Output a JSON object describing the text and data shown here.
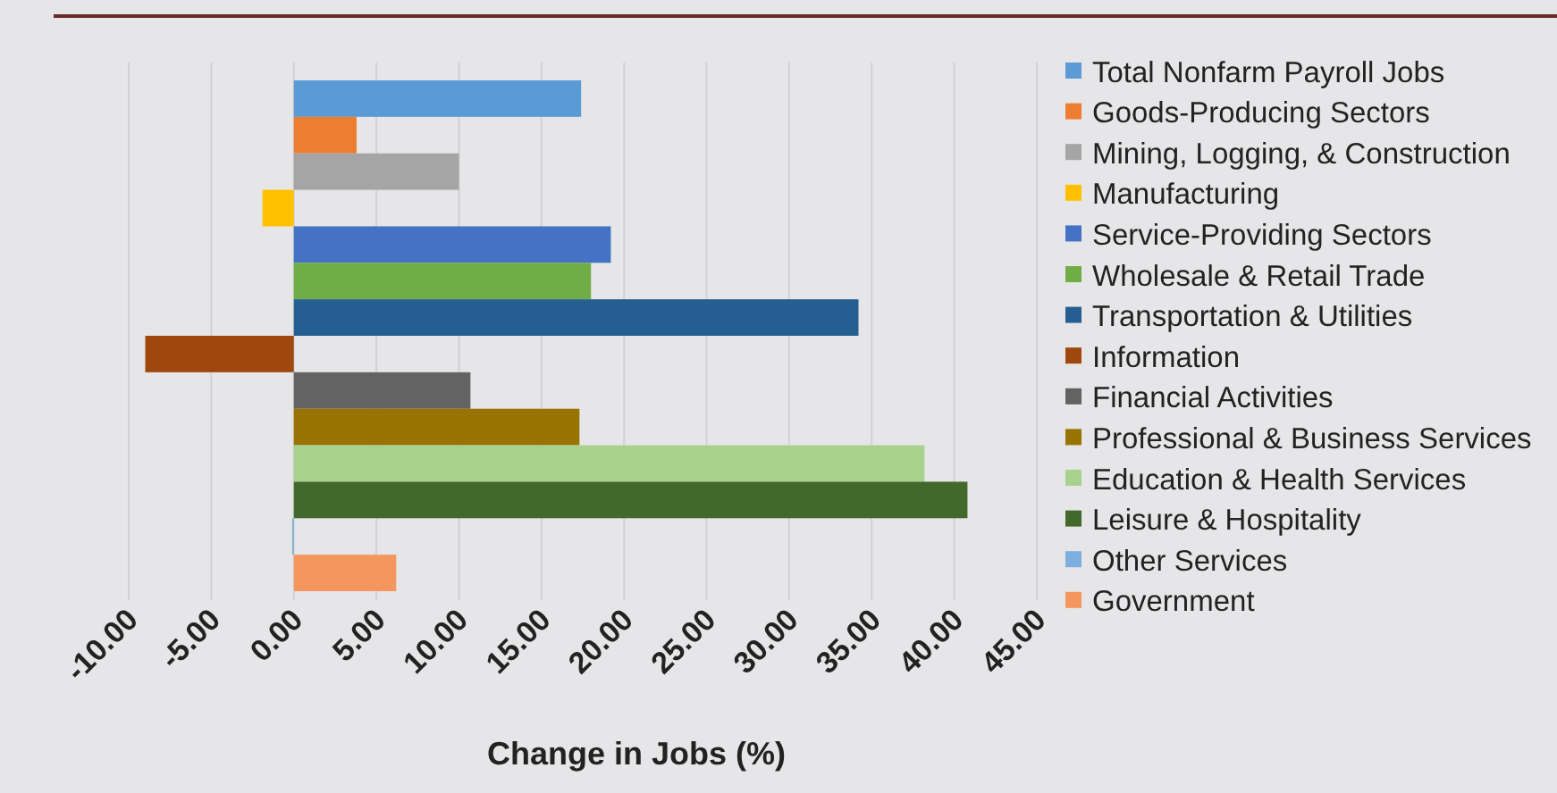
{
  "chart_data": {
    "type": "bar",
    "orientation": "horizontal",
    "xlabel": "Change in Jobs (%)",
    "categories": [
      null
    ],
    "series": [
      {
        "name": "Total Nonfarm Payroll Jobs",
        "color": "#5b9bd5",
        "values": [
          17.4
        ]
      },
      {
        "name": "Goods-Producing Sectors",
        "color": "#ed7d31",
        "values": [
          3.8
        ]
      },
      {
        "name": "Mining, Logging, & Construction",
        "color": "#a5a5a5",
        "values": [
          10.0
        ]
      },
      {
        "name": "Manufacturing",
        "color": "#ffc000",
        "values": [
          -1.9
        ]
      },
      {
        "name": "Service-Providing Sectors",
        "color": "#4472c4",
        "values": [
          19.2
        ]
      },
      {
        "name": "Wholesale & Retail Trade",
        "color": "#70ad47",
        "values": [
          18.0
        ]
      },
      {
        "name": "Transportation & Utilities",
        "color": "#255e91",
        "values": [
          34.2
        ]
      },
      {
        "name": "Information",
        "color": "#9e480e",
        "values": [
          -9.0
        ]
      },
      {
        "name": "Financial Activities",
        "color": "#636363",
        "values": [
          10.7
        ]
      },
      {
        "name": "Professional & Business Services",
        "color": "#997300",
        "values": [
          17.3
        ]
      },
      {
        "name": "Education & Health Services",
        "color": "#a9d18e",
        "values": [
          38.2
        ]
      },
      {
        "name": "Leisure & Hospitality",
        "color": "#43682b",
        "values": [
          40.8
        ]
      },
      {
        "name": "Other Services",
        "color": "#7cafdd",
        "values": [
          -0.1
        ]
      },
      {
        "name": "Government",
        "color": "#f4965d",
        "values": [
          6.2
        ]
      }
    ],
    "xlim": [
      -10,
      45
    ],
    "xticks": [
      {
        "value": -10,
        "label": "-10.00"
      },
      {
        "value": -5,
        "label": "-5.00"
      },
      {
        "value": 0,
        "label": "0.00"
      },
      {
        "value": 5,
        "label": "5.00"
      },
      {
        "value": 10,
        "label": "10.00"
      },
      {
        "value": 15,
        "label": "15.00"
      },
      {
        "value": 20,
        "label": "20.00"
      },
      {
        "value": 25,
        "label": "25.00"
      },
      {
        "value": 30,
        "label": "30.00"
      },
      {
        "value": 35,
        "label": "35.00"
      },
      {
        "value": 40,
        "label": "40.00"
      },
      {
        "value": 45,
        "label": "45.00"
      }
    ],
    "grid": "x",
    "legend": "right",
    "tick_labels": "x"
  }
}
